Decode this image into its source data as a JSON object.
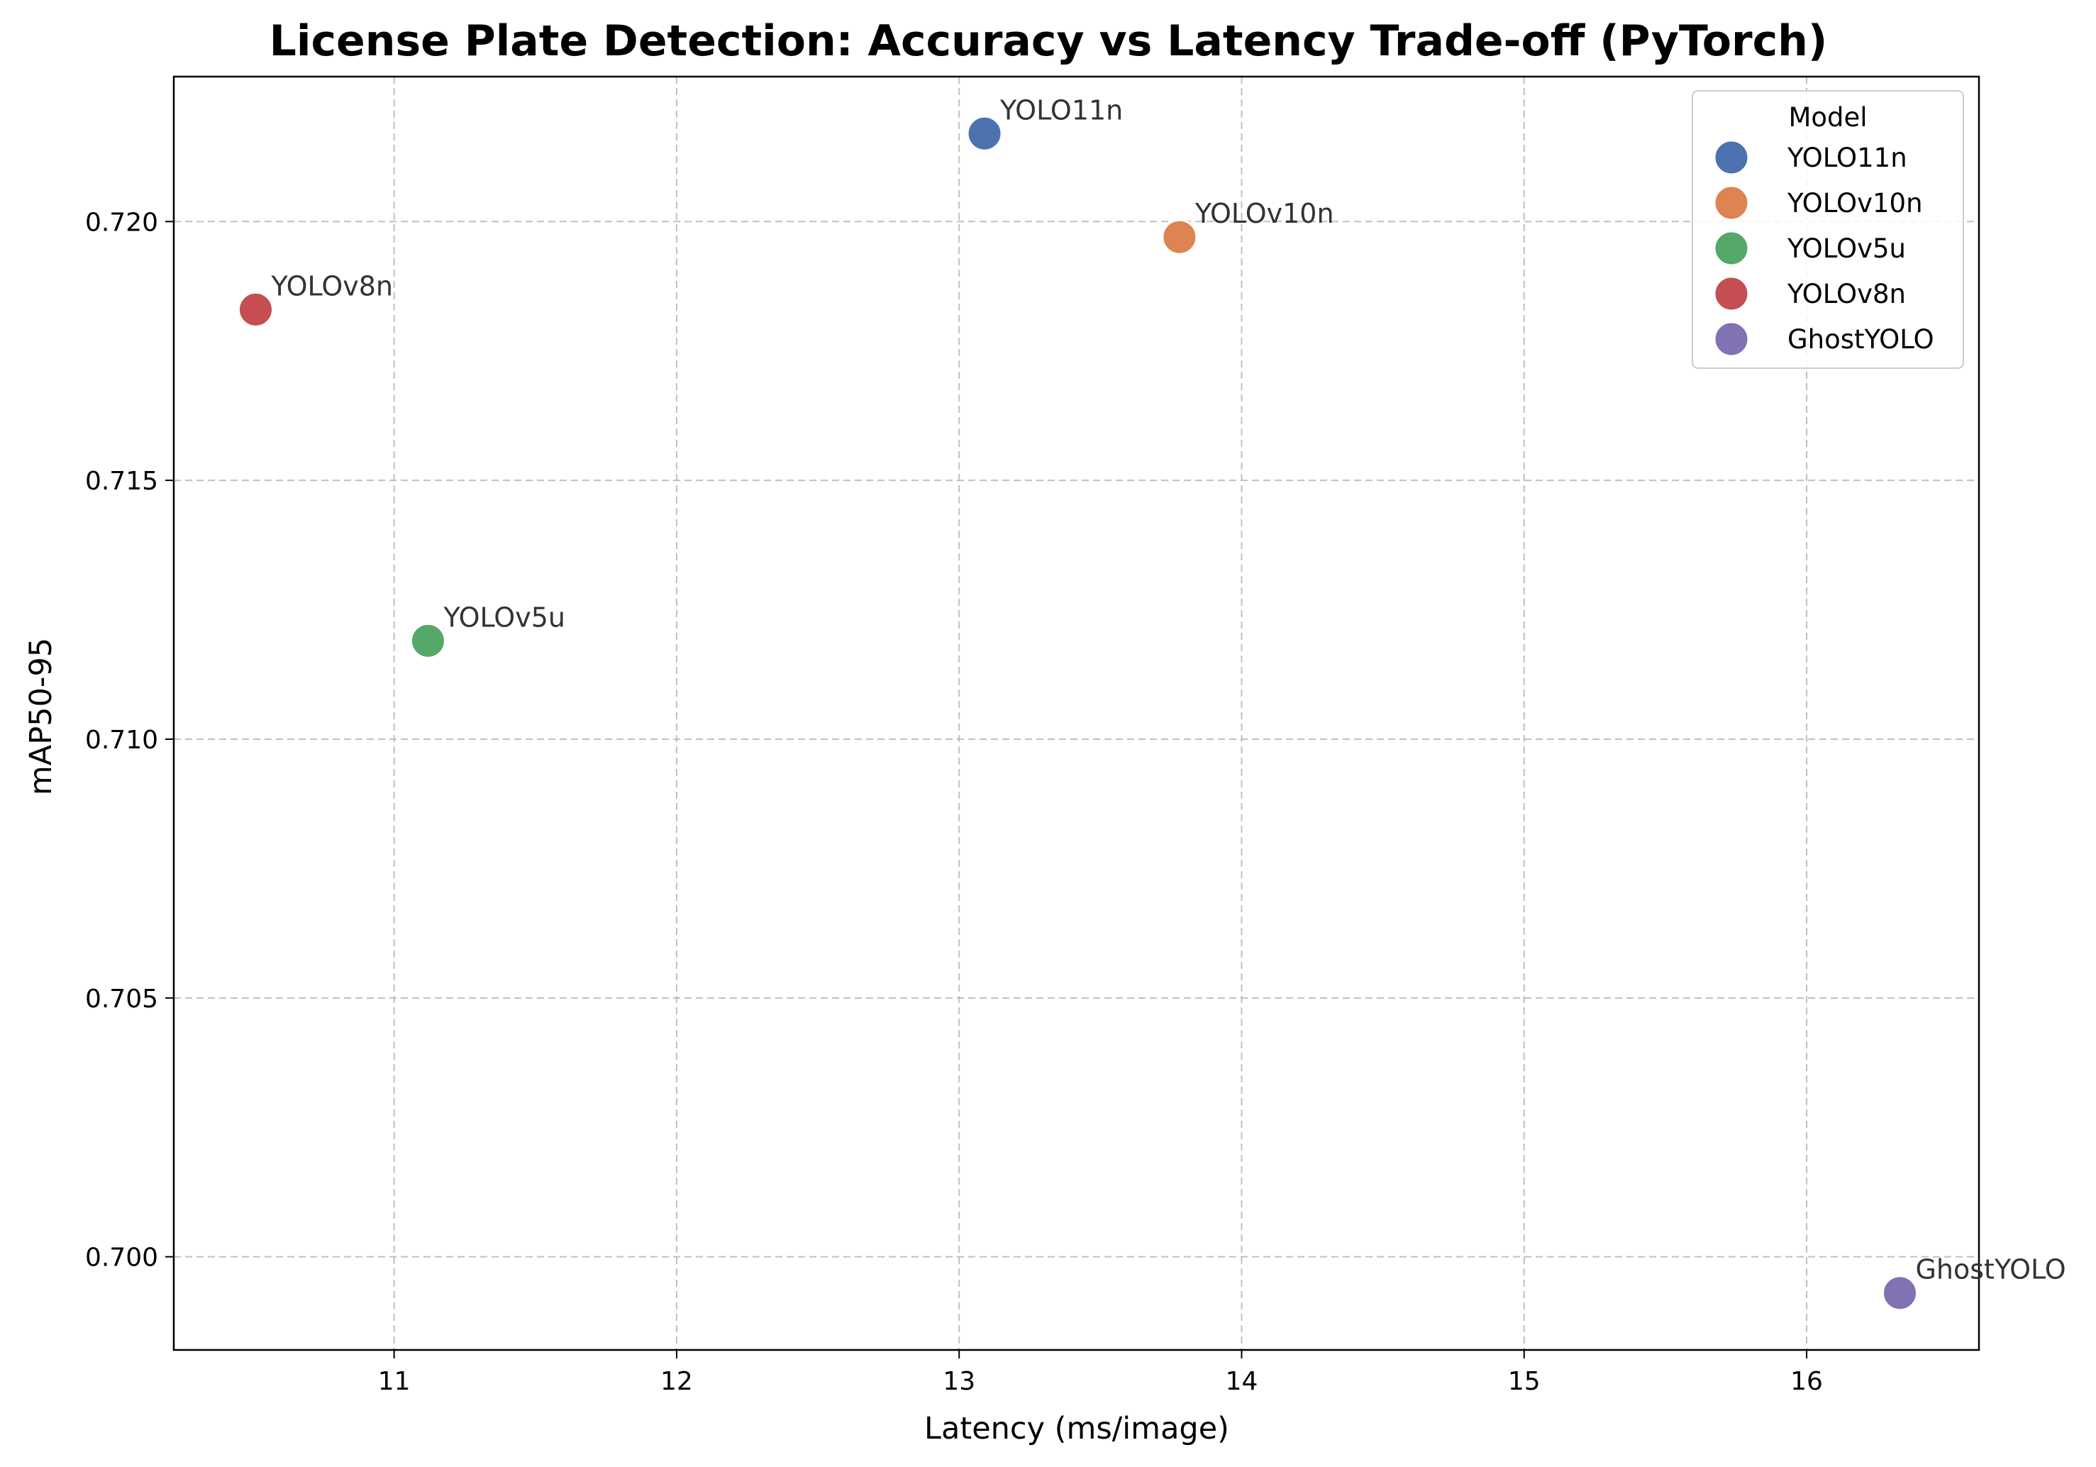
{
  "chart_data": {
    "type": "scatter",
    "title": "License Plate Detection: Accuracy vs Latency Trade-off (PyTorch)",
    "xlabel": "Latency (ms/image)",
    "ylabel": "mAP50-95",
    "xlim": [
      10.22,
      16.61
    ],
    "ylim": [
      0.6982,
      0.7228
    ],
    "xticks": [
      11,
      12,
      13,
      14,
      15,
      16
    ],
    "yticks": [
      0.7,
      0.705,
      0.71,
      0.715,
      0.72
    ],
    "xtick_labels": [
      "11",
      "12",
      "13",
      "14",
      "15",
      "16"
    ],
    "ytick_labels": [
      "0.700",
      "0.705",
      "0.710",
      "0.715",
      "0.720"
    ],
    "grid": true,
    "grid_style": "dashed",
    "legend": {
      "title": "Model",
      "placement": "top-right"
    },
    "series": [
      {
        "name": "YOLO11n",
        "x": 13.09,
        "y": 0.7217,
        "color": "#4c72b0"
      },
      {
        "name": "YOLOv10n",
        "x": 13.78,
        "y": 0.7197,
        "color": "#dd8452"
      },
      {
        "name": "YOLOv5u",
        "x": 11.12,
        "y": 0.7119,
        "color": "#55a868"
      },
      {
        "name": "YOLOv8n",
        "x": 10.51,
        "y": 0.7183,
        "color": "#c44e52"
      },
      {
        "name": "GhostYOLO",
        "x": 16.33,
        "y": 0.6993,
        "color": "#8172b3"
      }
    ]
  }
}
